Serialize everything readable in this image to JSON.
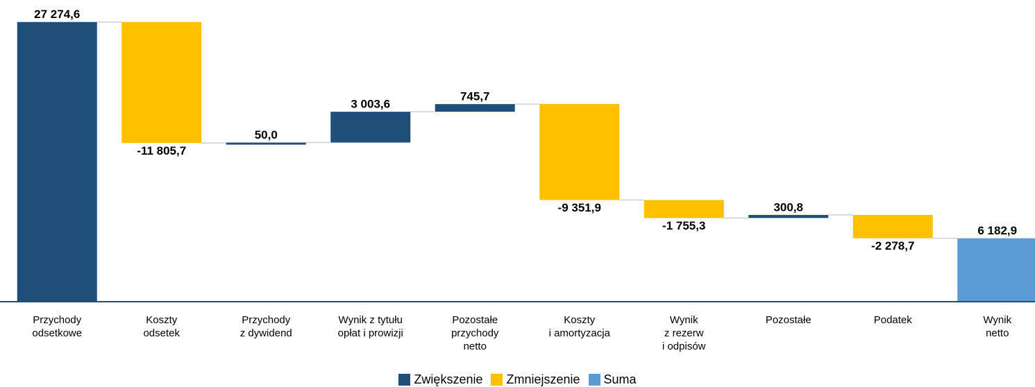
{
  "chart_data": {
    "type": "waterfall",
    "categories": [
      "Przychody\nodsetkowe",
      "Koszty\nodsetek",
      "Przychody\nz dywidend",
      "Wynik z tytułu\nopłat i prowizji",
      "Pozostałe\nprzychody\nnetto",
      "Koszty\ni amortyzacja",
      "Wynik\nz rezerw\ni odpisów",
      "Pozostałe",
      "Podatek",
      "Wynik\nnetto"
    ],
    "series": [
      {
        "name": "Zwiększenie",
        "color": "#1f4e79",
        "values": [
          27274.6,
          null,
          50.0,
          3003.6,
          745.7,
          null,
          null,
          300.8,
          null,
          null
        ],
        "value_labels": [
          "27 274,6",
          null,
          "50,0",
          "3 003,6",
          "745,7",
          null,
          null,
          "300,8",
          null,
          null
        ]
      },
      {
        "name": "Zmniejszenie",
        "color": "#ffc000",
        "values": [
          null,
          -11805.7,
          null,
          null,
          null,
          -9351.9,
          -1755.3,
          null,
          -2278.7,
          null
        ],
        "value_labels": [
          null,
          "-11 805,7",
          null,
          null,
          null,
          "-9 351,9",
          "-1 755,3",
          null,
          "-2 278,7",
          null
        ]
      },
      {
        "name": "Suma",
        "color": "#5b9bd5",
        "values": [
          null,
          null,
          null,
          null,
          null,
          null,
          null,
          null,
          null,
          6182.9
        ],
        "value_labels": [
          null,
          null,
          null,
          null,
          null,
          null,
          null,
          null,
          null,
          "6 182,9"
        ]
      }
    ],
    "ylim": [
      0,
      28000
    ]
  }
}
